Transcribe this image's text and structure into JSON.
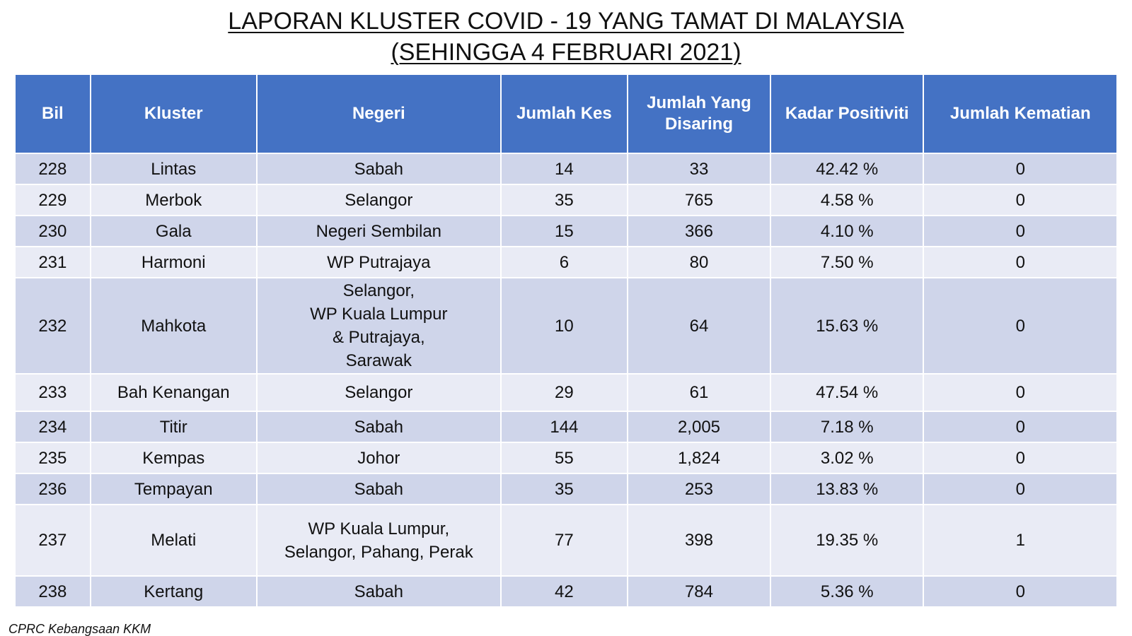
{
  "title": {
    "line1": "LAPORAN KLUSTER COVID - 19 YANG TAMAT DI MALAYSIA",
    "line2": "(SEHINGGA 4 FEBRUARI 2021)"
  },
  "table": {
    "headers": [
      "Bil",
      "Kluster",
      "Negeri",
      "Jumlah Kes",
      "Jumlah Yang Disaring",
      "Kadar Positiviti",
      "Jumlah Kematian"
    ],
    "rows": [
      [
        "228",
        "Lintas",
        "Sabah",
        "14",
        "33",
        "42.42 %",
        "0"
      ],
      [
        "229",
        "Merbok",
        "Selangor",
        "35",
        "765",
        "4.58 %",
        "0"
      ],
      [
        "230",
        "Gala",
        "Negeri Sembilan",
        "15",
        "366",
        "4.10 %",
        "0"
      ],
      [
        "231",
        "Harmoni",
        "WP Putrajaya",
        "6",
        "80",
        "7.50 %",
        "0"
      ],
      [
        "232",
        "Mahkota",
        "Selangor,\nWP Kuala Lumpur\n& Putrajaya,\nSarawak",
        "10",
        "64",
        "15.63 %",
        "0"
      ],
      [
        "233",
        "Bah Kenangan",
        "Selangor",
        "29",
        "61",
        "47.54 %",
        "0"
      ],
      [
        "234",
        "Titir",
        "Sabah",
        "144",
        "2,005",
        "7.18 %",
        "0"
      ],
      [
        "235",
        "Kempas",
        "Johor",
        "55",
        "1,824",
        "3.02 %",
        "0"
      ],
      [
        "236",
        "Tempayan",
        "Sabah",
        "35",
        "253",
        "13.83 %",
        "0"
      ],
      [
        "237",
        "Melati",
        "WP Kuala Lumpur,\nSelangor, Pahang, Perak",
        "77",
        "398",
        "19.35 %",
        "1"
      ],
      [
        "238",
        "Kertang",
        "Sabah",
        "42",
        "784",
        "5.36 %",
        "0"
      ]
    ]
  },
  "footer": "CPRC Kebangsaan KKM",
  "colors": {
    "header_bg": "#4472c4",
    "row_dark": "#cfd5ea",
    "row_light": "#e9ebf5"
  }
}
